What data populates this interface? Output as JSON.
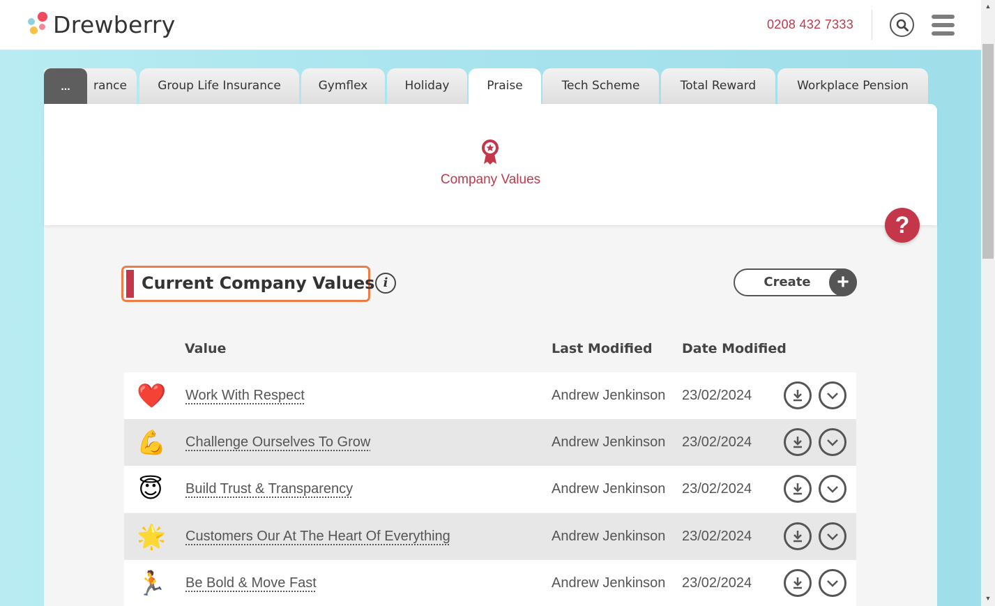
{
  "header": {
    "brand": "Drewberry",
    "phone": "0208 432 7333",
    "search_icon": "search-icon",
    "menu_icon": "hamburger-menu-icon"
  },
  "tabs": {
    "more_label": "...",
    "items": [
      {
        "label": "Insurance",
        "visible_text": "rance"
      },
      {
        "label": "Group Life Insurance"
      },
      {
        "label": "Gymflex"
      },
      {
        "label": "Holiday"
      },
      {
        "label": "Praise",
        "active": true
      },
      {
        "label": "Tech Scheme"
      },
      {
        "label": "Total Reward"
      },
      {
        "label": "Workplace Pension"
      }
    ]
  },
  "panel": {
    "icon": "award-ribbon-icon",
    "title": "Company Values",
    "help_label": "?"
  },
  "section": {
    "title": "Current Company Values",
    "info_label": "i",
    "create_label": "Create",
    "create_plus": "+"
  },
  "table": {
    "headers": {
      "value": "Value",
      "last_modified": "Last Modified",
      "date_modified": "Date Modified"
    },
    "rows": [
      {
        "emoji": "❤️",
        "value": "Work With Respect",
        "user": "Andrew Jenkinson",
        "date": "23/02/2024"
      },
      {
        "emoji": "💪",
        "value": "Challenge Ourselves To Grow",
        "user": "Andrew Jenkinson",
        "date": "23/02/2024"
      },
      {
        "emoji": "😇",
        "value": "Build Trust & Transparency",
        "user": "Andrew Jenkinson",
        "date": "23/02/2024"
      },
      {
        "emoji": "🌟",
        "value": "Customers Our At The Heart Of Everything",
        "user": "Andrew Jenkinson",
        "date": "23/02/2024"
      },
      {
        "emoji": "🏃",
        "value": "Be Bold & Move Fast",
        "user": "Andrew Jenkinson",
        "date": "23/02/2024"
      }
    ]
  },
  "colors": {
    "accent": "#c0384b",
    "highlight_border": "#f27b45",
    "background": "#a7e3ee"
  }
}
